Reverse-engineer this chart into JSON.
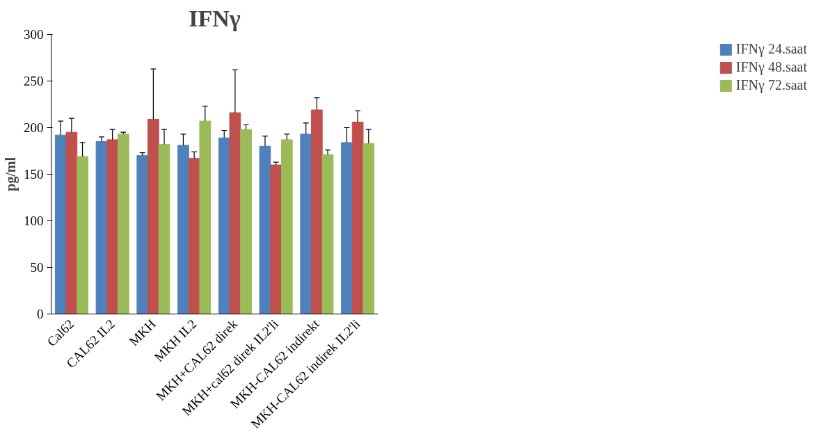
{
  "chart_data": {
    "type": "bar",
    "title": "IFNγ",
    "ylabel": "pg/ml",
    "categories": [
      "Cal62",
      "CAL62 IL2",
      "MKH",
      "MKH IL2",
      "MKH+CAL62 direk",
      "MKH+cal62 direk IL2'li",
      "MKH-CAL62 indirekt",
      "MKH-CAL62 indirek IL2'li"
    ],
    "series": [
      {
        "name": "IFNγ 24.saat",
        "color": "#4f81bd",
        "values": [
          192,
          185,
          170,
          181,
          189,
          180,
          193,
          184
        ],
        "errors": [
          [
            192,
            207
          ],
          [
            185,
            190
          ],
          [
            170,
            173
          ],
          [
            181,
            193
          ],
          [
            189,
            197
          ],
          [
            180,
            191
          ],
          [
            193,
            205
          ],
          [
            184,
            200
          ]
        ]
      },
      {
        "name": "IFNγ 48.saat",
        "color": "#c0504d",
        "values": [
          195,
          187,
          209,
          167,
          216,
          160,
          219,
          206
        ],
        "errors": [
          [
            195,
            210
          ],
          [
            187,
            198
          ],
          [
            209,
            263
          ],
          [
            167,
            174
          ],
          [
            216,
            262
          ],
          [
            160,
            163
          ],
          [
            219,
            232
          ],
          [
            206,
            218
          ]
        ]
      },
      {
        "name": "IFNγ 72.saat",
        "color": "#9bbb59",
        "values": [
          169,
          193,
          182,
          207,
          198,
          187,
          171,
          183
        ],
        "errors": [
          [
            169,
            184
          ],
          [
            193,
            195
          ],
          [
            182,
            198
          ],
          [
            207,
            223
          ],
          [
            198,
            203
          ],
          [
            187,
            193
          ],
          [
            171,
            176
          ],
          [
            183,
            198
          ]
        ]
      }
    ],
    "ylim": [
      0,
      300
    ],
    "yticks": [
      0,
      50,
      100,
      150,
      200,
      250,
      300
    ],
    "grid": false,
    "legend": "right"
  }
}
